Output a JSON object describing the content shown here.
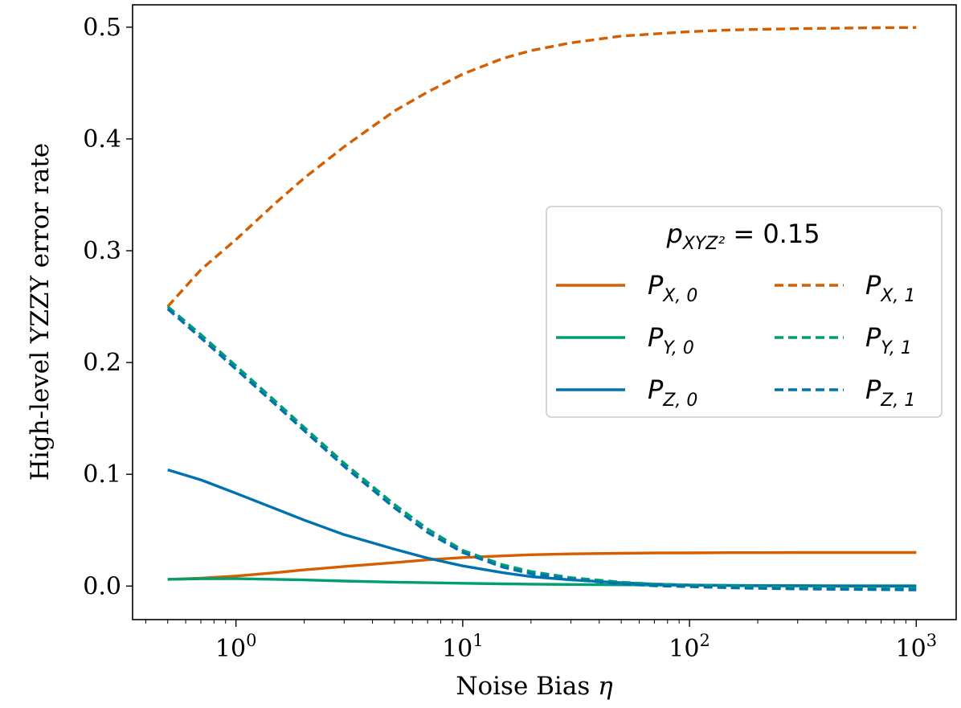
{
  "chart_data": {
    "type": "line",
    "title": "",
    "xlabel": "Noise Bias η",
    "ylabel": "High-level YZZY error rate",
    "xscale": "log",
    "xlim": [
      0.35,
      1500
    ],
    "ylim": [
      -0.03,
      0.52
    ],
    "x_ticks": [
      {
        "value": 1,
        "base": "10",
        "exp": "0"
      },
      {
        "value": 10,
        "base": "10",
        "exp": "1"
      },
      {
        "value": 100,
        "base": "10",
        "exp": "2"
      },
      {
        "value": 1000,
        "base": "10",
        "exp": "3"
      }
    ],
    "y_ticks": [
      {
        "value": 0.0,
        "label": "0.0"
      },
      {
        "value": 0.1,
        "label": "0.1"
      },
      {
        "value": 0.2,
        "label": "0.2"
      },
      {
        "value": 0.3,
        "label": "0.3"
      },
      {
        "value": 0.4,
        "label": "0.4"
      },
      {
        "value": 0.5,
        "label": "0.5"
      }
    ],
    "grid": false,
    "legend": {
      "placement": "center-right",
      "title_main": "p",
      "title_sub": "XYZ²",
      "title_value": " = 0.15",
      "columns": 2
    },
    "x": [
      0.5,
      0.7,
      1,
      1.5,
      2,
      3,
      5,
      7,
      10,
      15,
      20,
      30,
      50,
      70,
      100,
      150,
      200,
      300,
      500,
      700,
      1000
    ],
    "series": [
      {
        "name": "P_{X,0}",
        "label_main": "P",
        "label_sub": "X, 0",
        "color": "#d55e00",
        "dash": "solid",
        "values": [
          0.006,
          0.007,
          0.009,
          0.012,
          0.0145,
          0.0175,
          0.021,
          0.0235,
          0.0255,
          0.027,
          0.028,
          0.0288,
          0.0293,
          0.0296,
          0.0297,
          0.0299,
          0.0299,
          0.03,
          0.03,
          0.03,
          0.03
        ]
      },
      {
        "name": "P_{Y,0}",
        "label_main": "P",
        "label_sub": "Y, 0",
        "color": "#009e73",
        "dash": "solid",
        "values": [
          0.006,
          0.0065,
          0.0066,
          0.006,
          0.0055,
          0.0045,
          0.0035,
          0.003,
          0.0025,
          0.002,
          0.0017,
          0.0014,
          0.0011,
          0.0009,
          0.0008,
          0.0006,
          0.0005,
          0.0004,
          0.0003,
          0.0002,
          0.0002
        ]
      },
      {
        "name": "P_{Z,0}",
        "label_main": "P",
        "label_sub": "Z, 0",
        "color": "#0072b2",
        "dash": "solid",
        "values": [
          0.104,
          0.095,
          0.083,
          0.069,
          0.059,
          0.046,
          0.033,
          0.025,
          0.018,
          0.012,
          0.0085,
          0.0055,
          0.003,
          0.0018,
          0.001,
          0.0005,
          0.0003,
          0.0001,
          0.0,
          -0.0001,
          -0.0001
        ]
      },
      {
        "name": "P_{X,1}",
        "label_main": "P",
        "label_sub": "X, 1",
        "color": "#d55e00",
        "dash": "dashed",
        "values": [
          0.25,
          0.283,
          0.31,
          0.343,
          0.365,
          0.393,
          0.425,
          0.442,
          0.458,
          0.472,
          0.479,
          0.486,
          0.492,
          0.494,
          0.496,
          0.4975,
          0.498,
          0.4987,
          0.4992,
          0.4995,
          0.4997
        ]
      },
      {
        "name": "P_{Y,1}",
        "label_main": "P",
        "label_sub": "Y, 1",
        "color": "#009e73",
        "dash": "dashed",
        "values": [
          0.25,
          0.225,
          0.197,
          0.165,
          0.142,
          0.11,
          0.073,
          0.051,
          0.032,
          0.019,
          0.013,
          0.0075,
          0.0035,
          0.0018,
          0.0008,
          0.0,
          -0.0005,
          -0.001,
          -0.0015,
          -0.0018,
          -0.002
        ]
      },
      {
        "name": "P_{Z,1}",
        "label_main": "P",
        "label_sub": "Z, 1",
        "color": "#0072b2",
        "dash": "dashed",
        "values": [
          0.248,
          0.222,
          0.194,
          0.162,
          0.139,
          0.107,
          0.07,
          0.048,
          0.03,
          0.017,
          0.011,
          0.006,
          0.002,
          0.0003,
          -0.0005,
          -0.0015,
          -0.002,
          -0.0025,
          -0.003,
          -0.0032,
          -0.0035
        ]
      }
    ]
  }
}
